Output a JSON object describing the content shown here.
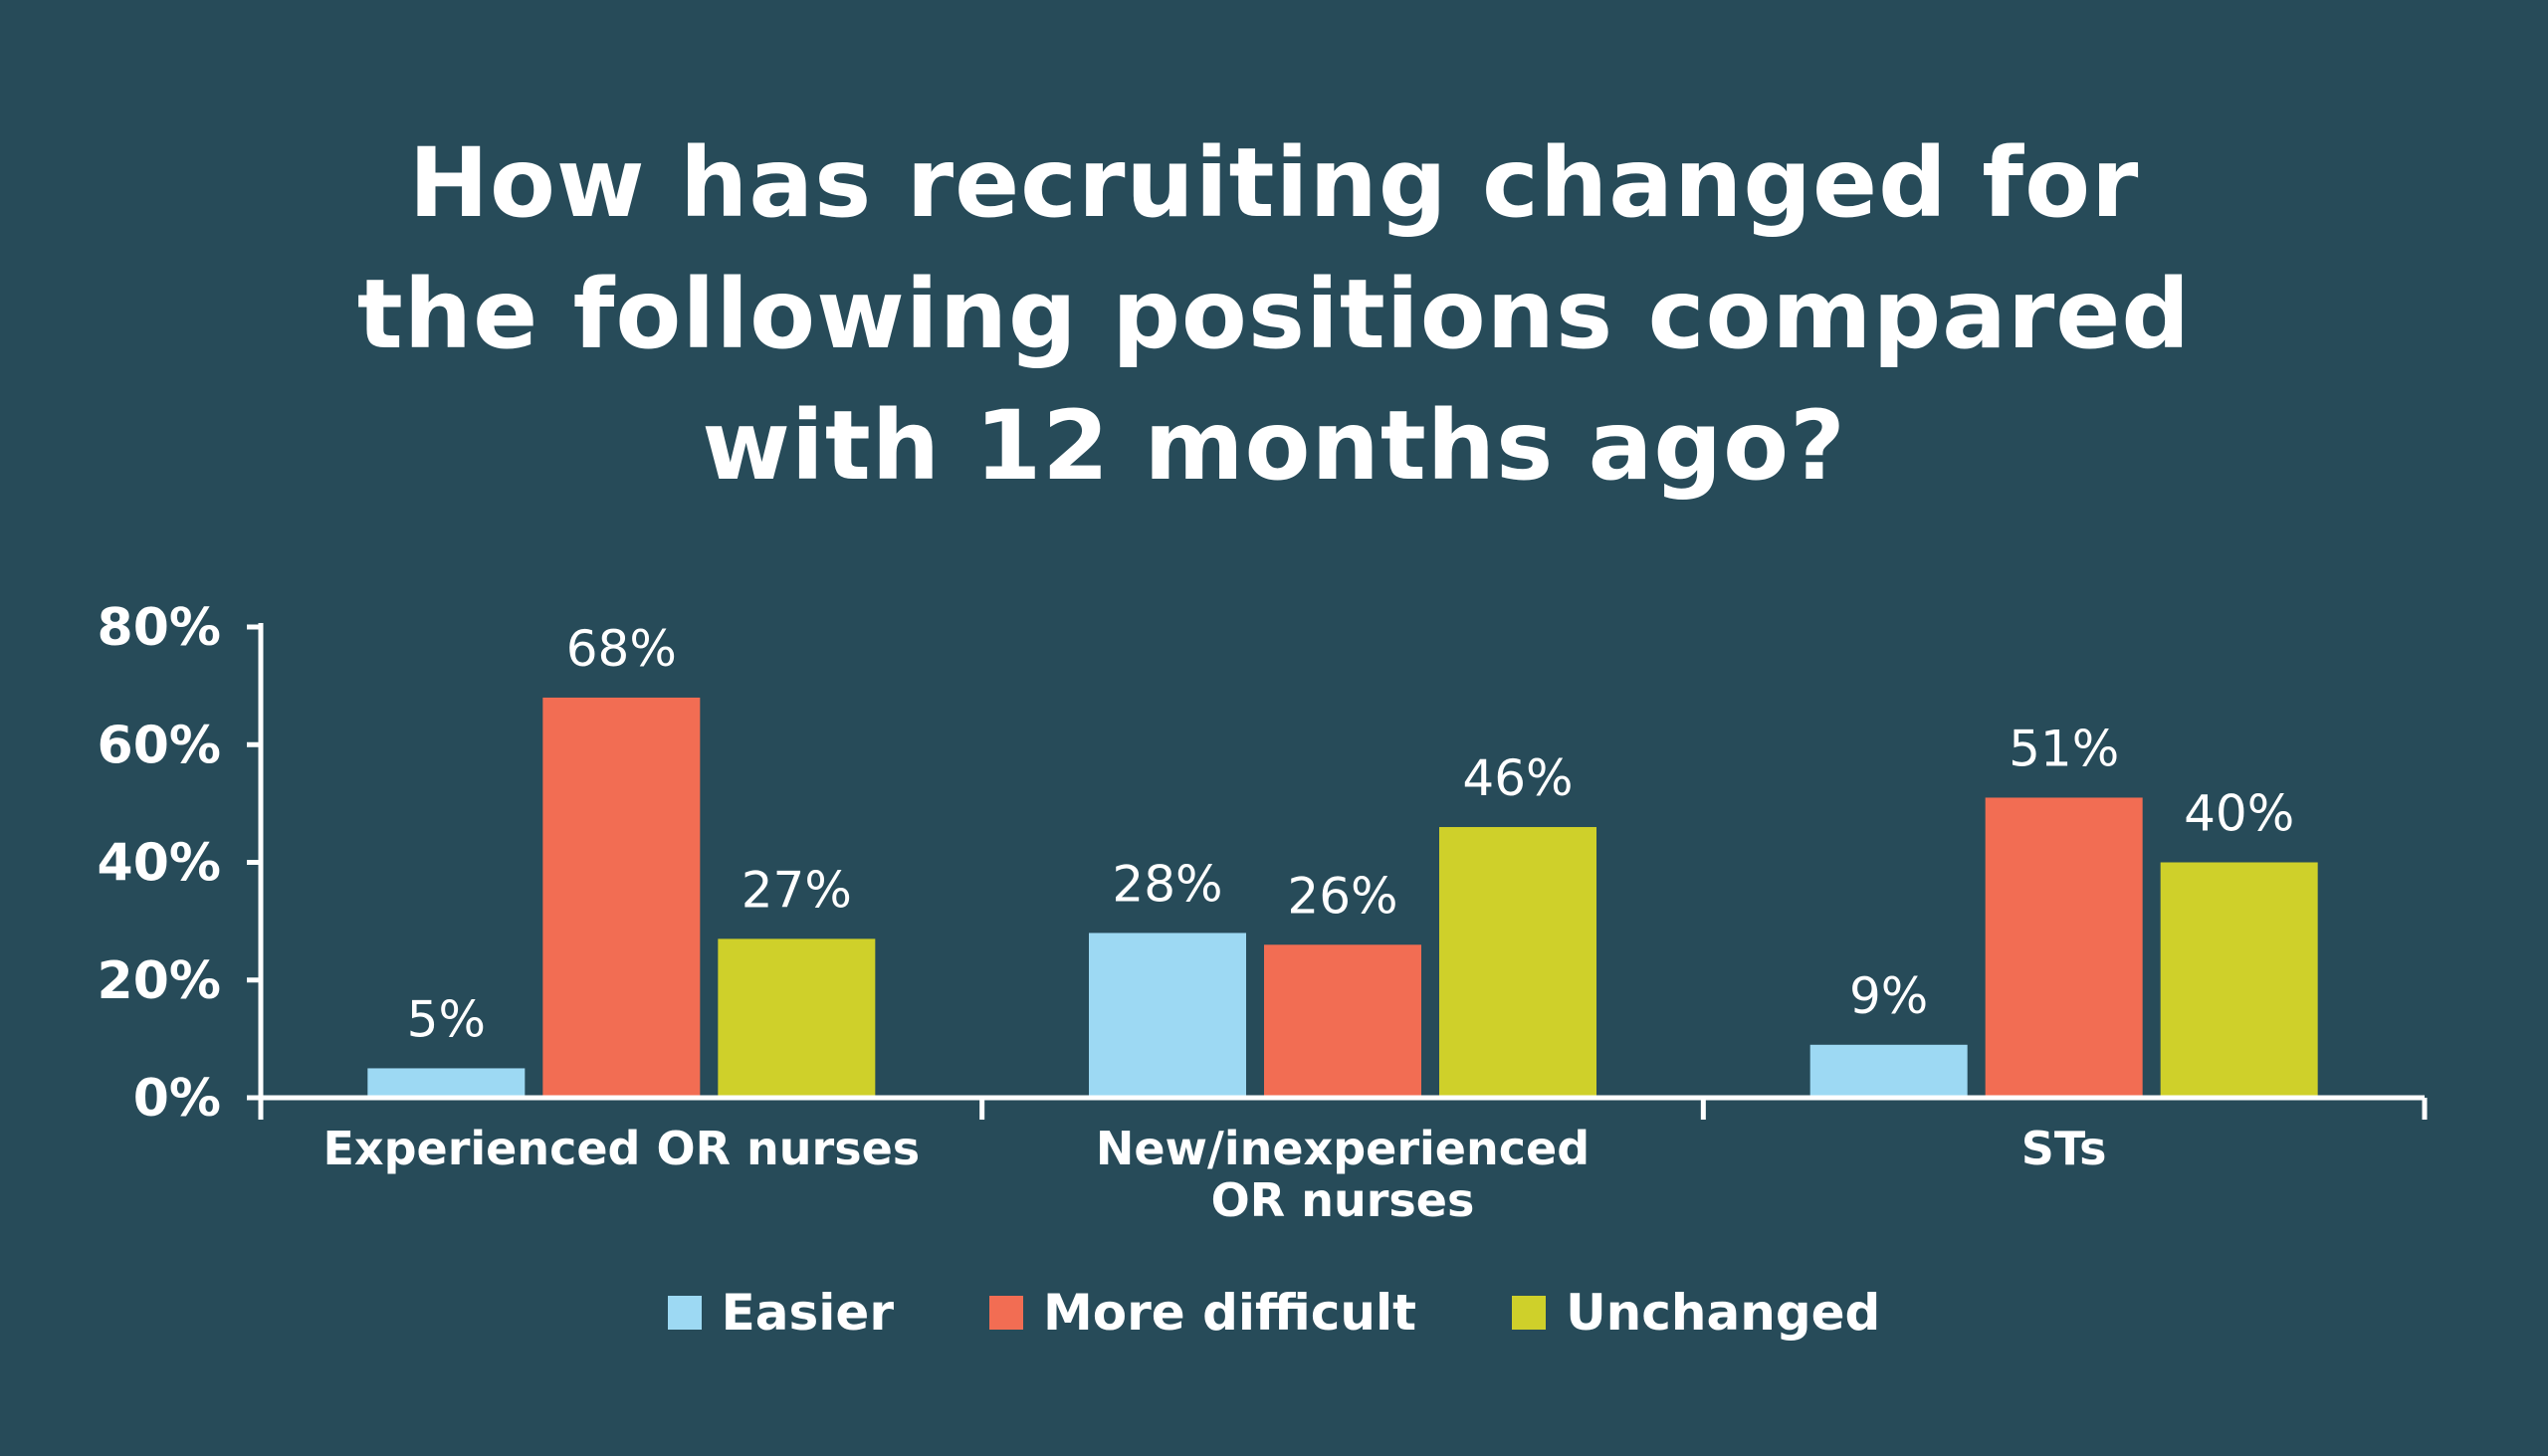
{
  "title_lines": [
    "How has recruiting changed for",
    "the following positions compared",
    "with 12 months ago?"
  ],
  "chart_data": {
    "type": "bar",
    "title": "How has recruiting changed for the following positions compared with 12 months ago?",
    "categories": [
      [
        "Experienced OR nurses"
      ],
      [
        "New/inexperienced",
        "OR nurses"
      ],
      [
        "STs"
      ]
    ],
    "series": [
      {
        "name": "Easier",
        "color": "#9dd9f3",
        "values": [
          5,
          28,
          9
        ]
      },
      {
        "name": "More difficult",
        "color": "#f26d53",
        "values": [
          68,
          26,
          51
        ]
      },
      {
        "name": "Unchanged",
        "color": "#cfd02a",
        "values": [
          27,
          46,
          40
        ]
      }
    ],
    "value_suffix": "%",
    "ylim": [
      0,
      80
    ],
    "yticks": [
      0,
      20,
      40,
      60,
      80
    ],
    "ytick_labels": [
      "0%",
      "20%",
      "40%",
      "60%",
      "80%"
    ],
    "grid": false,
    "legend_position": "bottom"
  }
}
